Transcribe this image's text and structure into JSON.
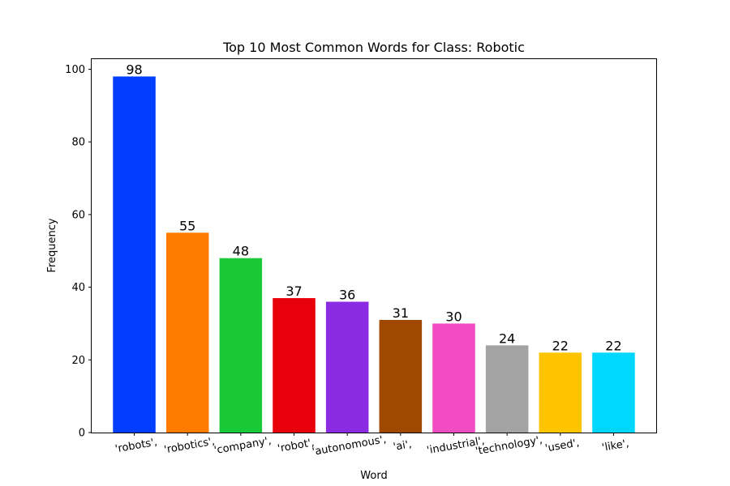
{
  "chart_data": {
    "type": "bar",
    "title": "Top 10 Most Common Words for Class: Robotic",
    "xlabel": "Word",
    "ylabel": "Frequency",
    "categories": [
      "'robots',",
      "'robotics',",
      "'company',",
      "'robot',",
      "'autonomous',",
      "'ai',",
      "'industrial',",
      "'technology',",
      "'used',",
      "'like',"
    ],
    "values": [
      98,
      55,
      48,
      37,
      36,
      31,
      30,
      24,
      22,
      22
    ],
    "data_labels": [
      "98",
      "55",
      "48",
      "37",
      "36",
      "31",
      "30",
      "24",
      "22",
      "22"
    ],
    "colors": [
      "#023eff",
      "#ff7c00",
      "#1ac938",
      "#e8000b",
      "#8b2be2",
      "#9f4800",
      "#f14cc1",
      "#a3a3a3",
      "#ffc400",
      "#00d7ff"
    ],
    "ylim": [
      0,
      103
    ],
    "yticks": [
      0,
      20,
      40,
      60,
      80,
      100
    ],
    "ytick_labels": [
      "0",
      "20",
      "40",
      "60",
      "80",
      "100"
    ],
    "grid": false,
    "xtick_rotation": 10
  }
}
